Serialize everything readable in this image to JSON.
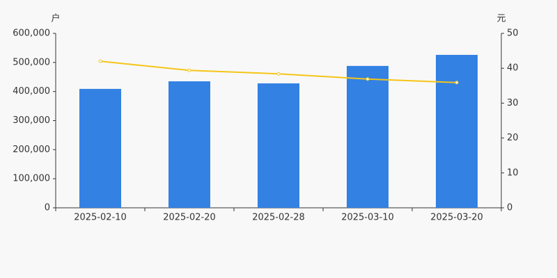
{
  "chart_data": {
    "type": "bar",
    "y_label": "户",
    "y2_label": "元",
    "categories": [
      "2025-02-10",
      "2025-02-20",
      "2025-02-28",
      "2025-03-10",
      "2025-03-20"
    ],
    "series": [
      {
        "type": "bar",
        "color": "#3381e3",
        "values": [
          409000,
          435000,
          428000,
          488000,
          526000
        ]
      },
      {
        "type": "line",
        "axis": "y2",
        "color": "#f5c518",
        "values": [
          42.0,
          39.4,
          38.4,
          36.9,
          35.9
        ]
      }
    ],
    "ylim": [
      0,
      600000
    ],
    "yticks": [
      0,
      {
        "value": 100000,
        "label": "100,000"
      },
      {
        "value": 200000,
        "label": "200,000"
      },
      {
        "value": 300000,
        "label": "300,000"
      },
      {
        "value": 400000,
        "label": "400,000"
      },
      {
        "value": 500000,
        "label": "500,000"
      },
      {
        "value": 600000,
        "label": "600,000"
      }
    ],
    "y2lim": [
      0,
      50
    ],
    "y2ticks": [
      0,
      10,
      20,
      30,
      40,
      50
    ],
    "grid": false
  }
}
